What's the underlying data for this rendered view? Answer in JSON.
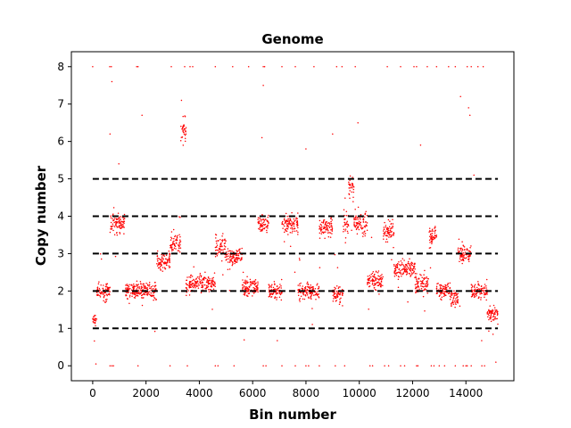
{
  "chart_data": {
    "type": "scatter",
    "title": "Genome",
    "xlabel": "Bin number",
    "ylabel": "Copy number",
    "xlim": [
      -800,
      15800
    ],
    "ylim": [
      -0.4,
      8.4
    ],
    "xticks": [
      0,
      2000,
      4000,
      6000,
      8000,
      10000,
      12000,
      14000
    ],
    "yticks": [
      0,
      1,
      2,
      3,
      4,
      5,
      6,
      7,
      8
    ],
    "grid": false,
    "legend": "none",
    "point_color": "#ff0000",
    "reference_line_color": "#000000",
    "reference_lines": [
      1,
      2,
      3,
      4,
      5
    ],
    "reference_line_xrange": [
      0,
      15200
    ],
    "segments": [
      {
        "x_start": 0,
        "x_end": 150,
        "copy_number": 1.2
      },
      {
        "x_start": 150,
        "x_end": 650,
        "copy_number": 2.0
      },
      {
        "x_start": 650,
        "x_end": 1200,
        "copy_number": 3.8
      },
      {
        "x_start": 1200,
        "x_end": 2400,
        "copy_number": 2.0
      },
      {
        "x_start": 2400,
        "x_end": 2900,
        "copy_number": 2.8
      },
      {
        "x_start": 2900,
        "x_end": 3300,
        "copy_number": 3.3
      },
      {
        "x_start": 3300,
        "x_end": 3500,
        "copy_number": 6.3
      },
      {
        "x_start": 3500,
        "x_end": 4600,
        "copy_number": 2.2
      },
      {
        "x_start": 4600,
        "x_end": 5000,
        "copy_number": 3.2
      },
      {
        "x_start": 5000,
        "x_end": 5600,
        "copy_number": 2.9
      },
      {
        "x_start": 5600,
        "x_end": 6200,
        "copy_number": 2.1
      },
      {
        "x_start": 6200,
        "x_end": 6600,
        "copy_number": 3.8
      },
      {
        "x_start": 6600,
        "x_end": 7100,
        "copy_number": 2.0
      },
      {
        "x_start": 7100,
        "x_end": 7700,
        "copy_number": 3.8
      },
      {
        "x_start": 7700,
        "x_end": 8000,
        "copy_number": 2.0
      },
      {
        "x_start": 8000,
        "x_end": 8500,
        "copy_number": 2.0
      },
      {
        "x_start": 8500,
        "x_end": 9000,
        "copy_number": 3.7
      },
      {
        "x_start": 9000,
        "x_end": 9400,
        "copy_number": 1.9
      },
      {
        "x_start": 9400,
        "x_end": 9600,
        "copy_number": 3.8
      },
      {
        "x_start": 9600,
        "x_end": 9800,
        "copy_number": 4.8
      },
      {
        "x_start": 9800,
        "x_end": 10300,
        "copy_number": 3.8
      },
      {
        "x_start": 10300,
        "x_end": 10900,
        "copy_number": 2.3
      },
      {
        "x_start": 10900,
        "x_end": 11300,
        "copy_number": 3.6
      },
      {
        "x_start": 11300,
        "x_end": 12100,
        "copy_number": 2.6
      },
      {
        "x_start": 12100,
        "x_end": 12600,
        "copy_number": 2.2
      },
      {
        "x_start": 12600,
        "x_end": 12900,
        "copy_number": 3.5
      },
      {
        "x_start": 12900,
        "x_end": 13400,
        "copy_number": 2.0
      },
      {
        "x_start": 13400,
        "x_end": 13700,
        "copy_number": 1.8
      },
      {
        "x_start": 13700,
        "x_end": 14200,
        "copy_number": 3.0
      },
      {
        "x_start": 14200,
        "x_end": 14800,
        "copy_number": 2.0
      },
      {
        "x_start": 14800,
        "x_end": 15200,
        "copy_number": 1.4
      }
    ],
    "outliers_at_8": [
      0,
      640,
      700,
      1650,
      1700,
      2950,
      3450,
      3650,
      3750,
      4600,
      5250,
      5850,
      6400,
      6450,
      7100,
      7600,
      8300,
      9150,
      9350,
      9850,
      11050,
      11550,
      12050,
      12150,
      12550,
      12900,
      13350,
      13600,
      14050,
      14200,
      14450,
      14650
    ],
    "outliers_at_0": [
      650,
      720,
      780,
      1700,
      2900,
      3550,
      4600,
      4700,
      5300,
      6400,
      6500,
      7100,
      7600,
      8000,
      8100,
      8500,
      9100,
      9450,
      10400,
      10500,
      10950,
      11100,
      11550,
      11700,
      12150,
      12200,
      12700,
      12800,
      13000,
      13200,
      13600,
      13900,
      14000,
      14050,
      14200,
      14600,
      14700
    ],
    "scattered_outliers": [
      {
        "x": 720,
        "y": 7.6
      },
      {
        "x": 650,
        "y": 6.2
      },
      {
        "x": 980,
        "y": 5.4
      },
      {
        "x": 1850,
        "y": 6.7
      },
      {
        "x": 3330,
        "y": 7.1
      },
      {
        "x": 6400,
        "y": 7.5
      },
      {
        "x": 6350,
        "y": 6.1
      },
      {
        "x": 9950,
        "y": 6.5
      },
      {
        "x": 12300,
        "y": 5.9
      },
      {
        "x": 13800,
        "y": 7.2
      },
      {
        "x": 14100,
        "y": 6.9
      },
      {
        "x": 14150,
        "y": 6.7
      },
      {
        "x": 8000,
        "y": 5.8
      },
      {
        "x": 9000,
        "y": 6.2
      },
      {
        "x": 14300,
        "y": 5.1
      }
    ]
  }
}
